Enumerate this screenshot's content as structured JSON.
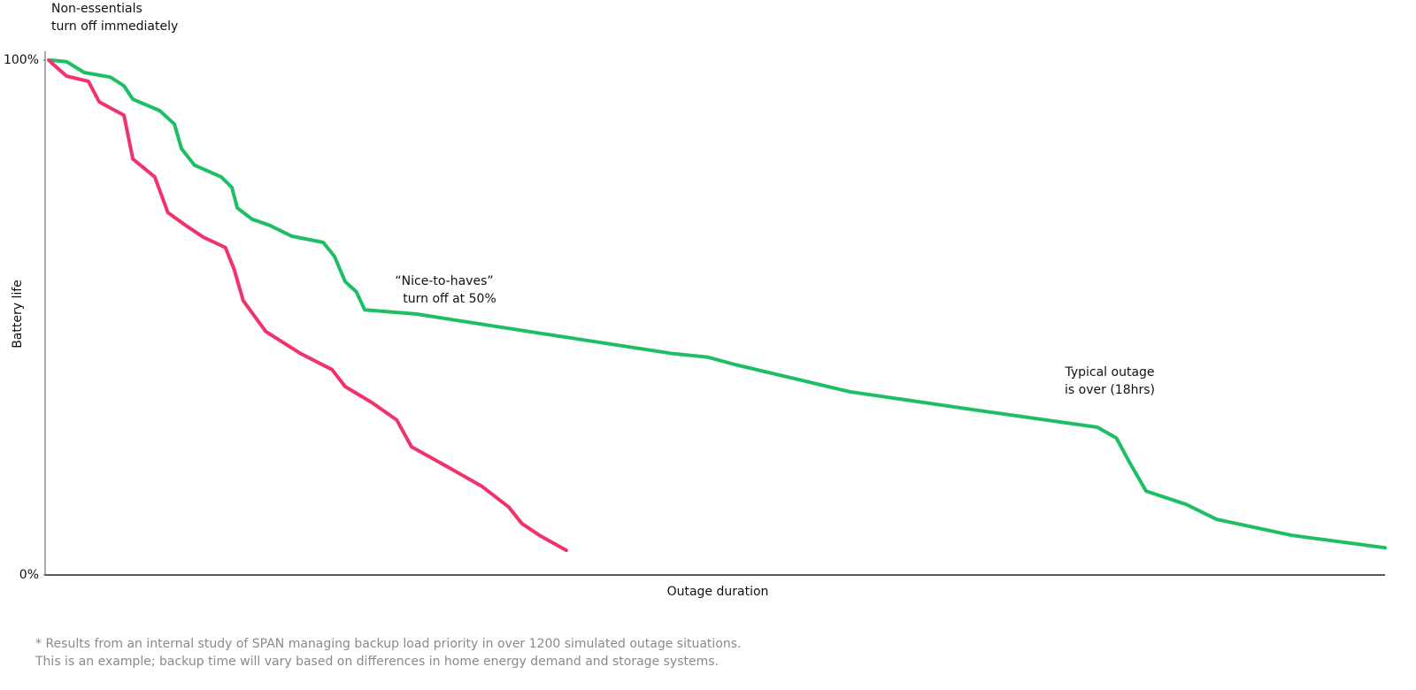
{
  "chart_data": {
    "type": "line",
    "ylabel": "Battery life",
    "xlabel": "Outage duration",
    "ylim": [
      0,
      100
    ],
    "yticks": [
      {
        "value": 0,
        "label": "0%"
      },
      {
        "value": 100,
        "label": "100%"
      }
    ],
    "xlim": [
      0,
      22.6
    ],
    "series": [
      {
        "color": "#1dbf62",
        "x": [
          0.1,
          0.36,
          0.66,
          1.1,
          1.33,
          1.48,
          1.93,
          2.18,
          2.3,
          2.52,
          2.97,
          3.15,
          3.24,
          3.49,
          3.79,
          4.16,
          4.69,
          4.88,
          5.06,
          5.25,
          5.39,
          6.25,
          8.49,
          10.58,
          11.18,
          11.63,
          13.57,
          15.66,
          17.75,
          18.07,
          18.27,
          18.57,
          19.25,
          19.76,
          21.03,
          22.6
        ],
        "values": [
          100,
          99.7,
          97.6,
          96.7,
          95,
          92.4,
          90.2,
          87.6,
          82.8,
          79.6,
          77.3,
          75.3,
          71.3,
          69.1,
          67.9,
          65.8,
          64.6,
          61.9,
          57,
          55,
          51.5,
          50.7,
          46.7,
          43,
          42.3,
          40.9,
          35.6,
          32.1,
          28.7,
          26.6,
          22.3,
          16.3,
          13.7,
          10.8,
          7.7,
          5.3
        ]
      },
      {
        "color": "#f0336a",
        "x": [
          0.06,
          0.36,
          0.73,
          0.91,
          1.33,
          1.48,
          1.85,
          2.07,
          2.37,
          2.67,
          3.04,
          3.19,
          3.34,
          3.72,
          4.31,
          4.84,
          5.06,
          5.51,
          5.93,
          6.18,
          6.85,
          7.37,
          7.82,
          8.04,
          8.34,
          8.79
        ],
        "values": [
          100,
          96.9,
          95.9,
          91.9,
          89.3,
          80.8,
          77.3,
          70.4,
          67.9,
          65.6,
          63.6,
          59.3,
          53.3,
          47.3,
          43,
          39.9,
          36.6,
          33.5,
          30.1,
          24.9,
          20.6,
          17.2,
          13.2,
          10,
          7.7,
          4.8
        ]
      }
    ],
    "annotations": [
      {
        "lines": [
          "Non-essentials",
          "turn off immediately"
        ]
      },
      {
        "lines": [
          "“Nice-to-haves”",
          "turn off at 50%"
        ]
      },
      {
        "lines": [
          "Typical outage",
          "is over (18hrs)"
        ]
      }
    ],
    "footnote": [
      "* Results from an internal study of SPAN managing backup load priority in over 1200 simulated outage situations.",
      "This is an example; backup time will vary based on differences in home energy demand and storage systems."
    ]
  }
}
